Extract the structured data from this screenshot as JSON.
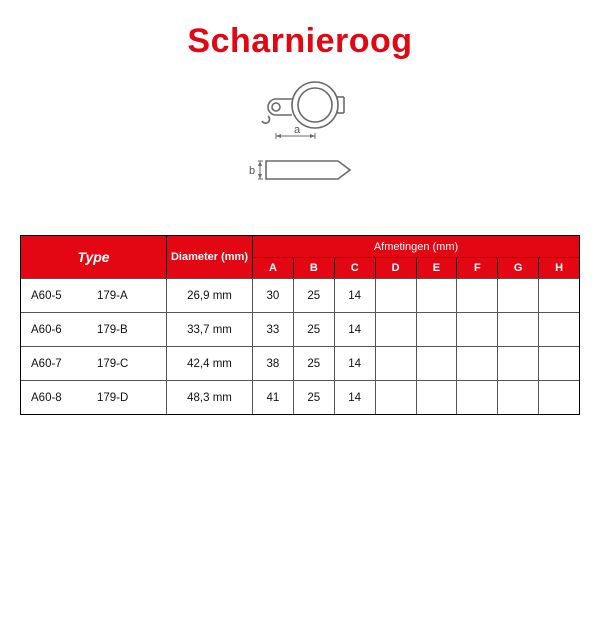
{
  "title": "Scharnieroog",
  "title_color": "#e30613",
  "diagram": {
    "label_a": "a",
    "label_b": "b",
    "line_color": "#6a6a6a"
  },
  "table": {
    "header_bg": "#e30613",
    "header_type": "Type",
    "header_diameter": "Diameter (mm)",
    "header_afmetingen": "Afmetingen (mm)",
    "dim_labels": [
      "A",
      "B",
      "C",
      "D",
      "E",
      "F",
      "G",
      "H"
    ],
    "rows": [
      {
        "code1": "A60-5",
        "code2": "179-A",
        "diameter": "26,9 mm",
        "dims": [
          "30",
          "25",
          "14",
          "",
          "",
          "",
          "",
          ""
        ]
      },
      {
        "code1": "A60-6",
        "code2": "179-B",
        "diameter": "33,7 mm",
        "dims": [
          "33",
          "25",
          "14",
          "",
          "",
          "",
          "",
          ""
        ]
      },
      {
        "code1": "A60-7",
        "code2": "179-C",
        "diameter": "42,4 mm",
        "dims": [
          "38",
          "25",
          "14",
          "",
          "",
          "",
          "",
          ""
        ]
      },
      {
        "code1": "A60-8",
        "code2": "179-D",
        "diameter": "48,3 mm",
        "dims": [
          "41",
          "25",
          "14",
          "",
          "",
          "",
          "",
          ""
        ]
      }
    ]
  }
}
